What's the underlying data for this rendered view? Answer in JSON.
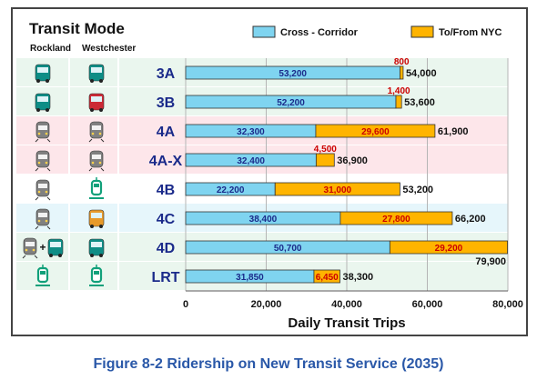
{
  "header": {
    "title": "Transit Mode",
    "col_rockland": "Rockland",
    "col_westchester": "Westchester"
  },
  "caption": "Figure 8-2 Ridership on New Transit Service (2035)",
  "colors": {
    "cross": "#7fd4f0",
    "nyc": "#ffb400",
    "label_dark": "#1a2a8a",
    "label_red": "#cc0000",
    "icon_teal": "#0e8d86",
    "icon_red": "#cc2a36",
    "icon_gray": "#808080",
    "icon_orange": "#e89a2a",
    "icon_rail": "#11a07a"
  },
  "chart_data": {
    "type": "bar",
    "orientation": "horizontal",
    "stacked": true,
    "categories": [
      "3A",
      "3B",
      "4A",
      "4A-X",
      "4B",
      "4C",
      "4D",
      "LRT"
    ],
    "series": [
      {
        "name": "Cross - Corridor",
        "values": [
          53200,
          52200,
          32300,
          32400,
          22200,
          38400,
          50700,
          31850
        ]
      },
      {
        "name": "To/From NYC",
        "values": [
          800,
          1400,
          29600,
          4500,
          31000,
          27800,
          29200,
          6450
        ]
      }
    ],
    "totals": [
      "54,000",
      "53,600",
      "61,900",
      "36,900",
      "53,200",
      "66,200",
      "79,900",
      "38,300"
    ],
    "cross_labels": [
      "53,200",
      "52,200",
      "32,300",
      "32,400",
      "22,200",
      "38,400",
      "50,700",
      "31,850"
    ],
    "nyc_labels": [
      "800",
      "1,400",
      "29,600",
      "4,500",
      "31,000",
      "27,800",
      "29,200",
      "6,450"
    ],
    "nyc_label_inside": [
      false,
      false,
      true,
      false,
      true,
      true,
      true,
      true
    ],
    "xlabel": "Daily Transit Trips",
    "xlim": [
      0,
      80000
    ],
    "xticks": [
      0,
      20000,
      40000,
      60000,
      80000
    ],
    "xtick_labels": [
      "0",
      "20,000",
      "40,000",
      "60,000",
      "80,000"
    ],
    "legend": [
      "Cross - Corridor",
      "To/From NYC"
    ],
    "legend_position": "top-right",
    "grid": true,
    "row_bands": [
      "#eaf6ee",
      "#eaf6ee",
      "#fde6ea",
      "#fde6ea",
      "#ffffff",
      "#e6f6fb",
      "#eaf6ee",
      "#eaf6ee"
    ],
    "rockland_icons": [
      "bus",
      "bus",
      "train",
      "train",
      "train",
      "train",
      "train+bus",
      "light-rail"
    ],
    "rockland_icon_colors": [
      "teal",
      "teal",
      "gray",
      "gray",
      "gray",
      "gray",
      "gray+teal",
      "rail"
    ],
    "westchester_icons": [
      "bus",
      "bus",
      "train",
      "train",
      "light-rail",
      "bus",
      "bus",
      "light-rail"
    ],
    "westchester_icon_colors": [
      "teal",
      "red",
      "gray",
      "gray",
      "rail",
      "orange",
      "teal",
      "rail"
    ]
  }
}
